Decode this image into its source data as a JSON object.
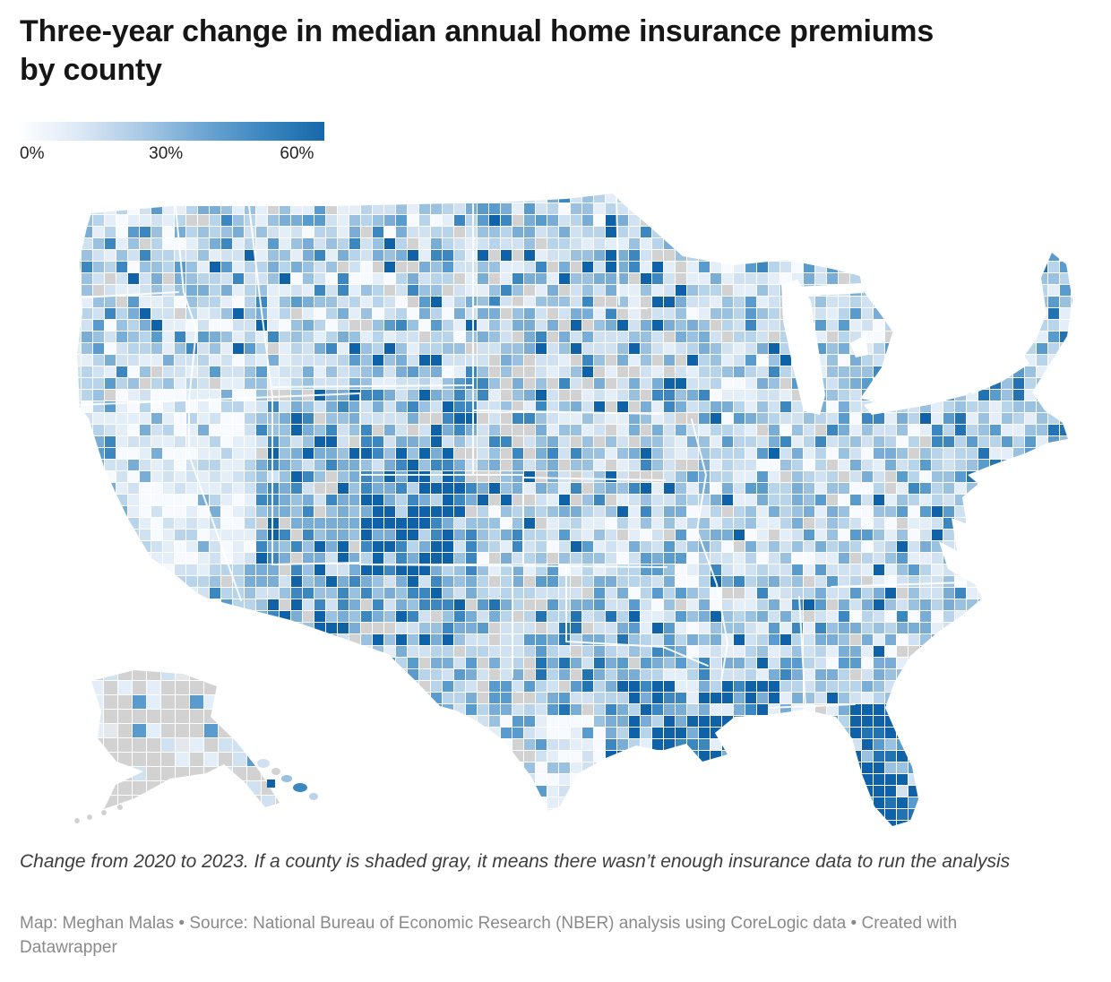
{
  "header": {
    "title": "Three-year change in median annual home insurance premiums by county"
  },
  "legend": {
    "ticks": [
      "0%",
      "30%",
      "60%"
    ],
    "gradient": [
      "#fdfeff",
      "#dbe8f5",
      "#a9c9e5",
      "#6ea6d3",
      "#3c87c0",
      "#1668ab"
    ]
  },
  "map": {
    "palette": [
      "#f7fbff",
      "#e3eef9",
      "#d0e2f2",
      "#b7d4ea",
      "#9ac2e0",
      "#79add6",
      "#5a9bcd",
      "#3c87c0",
      "#2372b2",
      "#1062a8"
    ],
    "no_data_color": "#d2d2d2",
    "border_color": "#ffffff"
  },
  "notes": {
    "description": "Change from 2020 to 2023. If a county is shaded gray, it means there wasn’t enough insurance data to run the analysis"
  },
  "credit": {
    "text": "Map: Meghan Malas • Source: National Bureau of Economic Research (NBER) analysis using CoreLogic data • Created with Datawrapper"
  },
  "chart_data": {
    "type": "choropleth",
    "geography": "United States counties (including Alaska and Hawaii)",
    "measure": "Three-year change in median annual home insurance premiums",
    "period": "2020 to 2023",
    "unit": "%",
    "scale": {
      "min": 0,
      "mid": 30,
      "max": 60,
      "min_label": "0%",
      "mid_label": "30%",
      "max_label": "60%",
      "low_color": "#fdfeff",
      "high_color": "#1062a8"
    },
    "no_data": "Counties shaded gray lacked enough insurance data to run the analysis",
    "visible_patterns": [
      "Darkest blues (largest premium increases) across Florida, coastal Louisiana and the Gulf Coast, Colorado and Utah, and parts of New England",
      "Gray no-data counties concentrated in the Great Plains, parts of Texas and most of Alaska",
      "Palest shades (smallest changes) in Nevada, central California and south Texas"
    ]
  }
}
